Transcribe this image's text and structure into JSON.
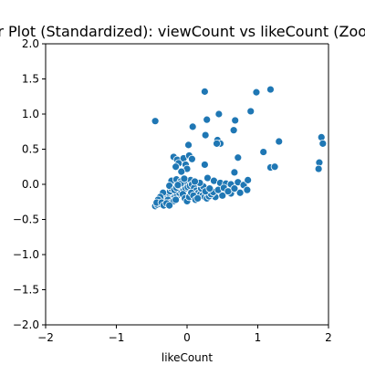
{
  "chart_data": {
    "type": "scatter",
    "title": "Scatter Plot (Standardized): viewCount vs likeCount (Zoomed In)",
    "xlabel": "likeCount",
    "ylabel": "",
    "xlim": [
      -2,
      2
    ],
    "ylim": [
      -2,
      2
    ],
    "xticks": [
      "−2",
      "−1",
      "0",
      "1",
      "2"
    ],
    "yticks": [
      "−2.0",
      "−1.5",
      "−1.0",
      "−0.5",
      "0.0",
      "0.5",
      "1.0",
      "1.5",
      "2.0"
    ],
    "grid": false,
    "marker_color": "#1f77b4",
    "points": [
      [
        -0.45,
        0.9
      ],
      [
        0.25,
        1.32
      ],
      [
        0.98,
        1.31
      ],
      [
        1.18,
        1.35
      ],
      [
        0.08,
        0.82
      ],
      [
        0.28,
        0.92
      ],
      [
        0.45,
        1.0
      ],
      [
        0.68,
        0.91
      ],
      [
        0.9,
        1.04
      ],
      [
        0.02,
        0.56
      ],
      [
        0.43,
        0.63
      ],
      [
        0.47,
        0.58
      ],
      [
        0.66,
        0.77
      ],
      [
        1.08,
        0.46
      ],
      [
        1.3,
        0.61
      ],
      [
        0.26,
        0.7
      ],
      [
        0.42,
        0.58
      ],
      [
        0.72,
        0.38
      ],
      [
        -0.19,
        0.39
      ],
      [
        -0.14,
        0.35
      ],
      [
        -0.05,
        0.37
      ],
      [
        0.03,
        0.41
      ],
      [
        0.07,
        0.36
      ],
      [
        -0.12,
        0.3
      ],
      [
        -0.02,
        0.28
      ],
      [
        0.0,
        0.22
      ],
      [
        -0.08,
        0.18
      ],
      [
        -0.16,
        0.25
      ],
      [
        0.25,
        0.28
      ],
      [
        0.67,
        0.17
      ],
      [
        1.18,
        0.24
      ],
      [
        1.24,
        0.25
      ],
      [
        1.9,
        0.67
      ],
      [
        1.92,
        0.58
      ],
      [
        1.87,
        0.31
      ],
      [
        1.86,
        0.22
      ],
      [
        -0.22,
        0.05
      ],
      [
        -0.15,
        0.07
      ],
      [
        -0.09,
        0.04
      ],
      [
        -0.02,
        0.02
      ],
      [
        0.05,
        0.06
      ],
      [
        0.29,
        0.09
      ],
      [
        0.38,
        0.05
      ],
      [
        0.47,
        0.02
      ],
      [
        0.55,
        0.01
      ],
      [
        0.62,
        0.0
      ],
      [
        0.72,
        0.03
      ],
      [
        0.8,
        -0.01
      ],
      [
        0.86,
        0.06
      ],
      [
        0.85,
        -0.08
      ],
      [
        0.75,
        -0.12
      ],
      [
        0.62,
        -0.13
      ],
      [
        0.5,
        -0.16
      ],
      [
        0.4,
        -0.18
      ],
      [
        -0.45,
        -0.31
      ],
      [
        -0.42,
        -0.29
      ],
      [
        -0.38,
        -0.28
      ],
      [
        -0.35,
        -0.25
      ],
      [
        -0.32,
        -0.22
      ],
      [
        -0.3,
        -0.18
      ],
      [
        -0.28,
        -0.15
      ],
      [
        -0.26,
        -0.12
      ],
      [
        -0.24,
        -0.1
      ],
      [
        -0.22,
        -0.06
      ],
      [
        -0.25,
        -0.02
      ],
      [
        -0.34,
        -0.12
      ],
      [
        -0.38,
        -0.18
      ],
      [
        -0.41,
        -0.22
      ],
      [
        -0.43,
        -0.26
      ],
      [
        -0.2,
        -0.2
      ],
      [
        -0.17,
        -0.18
      ],
      [
        -0.14,
        -0.16
      ],
      [
        -0.11,
        -0.12
      ],
      [
        -0.08,
        -0.1
      ],
      [
        -0.05,
        -0.08
      ],
      [
        -0.02,
        -0.06
      ],
      [
        0.01,
        -0.04
      ],
      [
        0.04,
        -0.02
      ],
      [
        0.07,
        0.0
      ],
      [
        0.1,
        -0.05
      ],
      [
        0.13,
        -0.09
      ],
      [
        0.16,
        -0.12
      ],
      [
        0.19,
        -0.14
      ],
      [
        0.22,
        -0.16
      ],
      [
        0.25,
        -0.18
      ],
      [
        0.28,
        -0.2
      ],
      [
        0.31,
        -0.17
      ],
      [
        0.34,
        -0.14
      ],
      [
        0.37,
        -0.11
      ],
      [
        -0.18,
        -0.08
      ],
      [
        -0.15,
        -0.05
      ],
      [
        -0.12,
        -0.02
      ],
      [
        -0.09,
        0.01
      ],
      [
        -0.06,
        -0.14
      ],
      [
        -0.03,
        -0.2
      ],
      [
        0.0,
        -0.24
      ],
      [
        0.03,
        -0.18
      ],
      [
        0.06,
        -0.12
      ],
      [
        0.09,
        -0.16
      ],
      [
        0.12,
        -0.22
      ],
      [
        0.15,
        -0.2
      ],
      [
        -0.27,
        -0.22
      ],
      [
        -0.23,
        -0.26
      ],
      [
        -0.19,
        -0.24
      ],
      [
        -0.16,
        -0.22
      ],
      [
        -0.36,
        -0.26
      ],
      [
        -0.33,
        -0.3
      ],
      [
        -0.29,
        -0.27
      ],
      [
        -0.25,
        -0.3
      ],
      [
        0.2,
        -0.06
      ],
      [
        0.23,
        -0.03
      ],
      [
        0.26,
        -0.1
      ],
      [
        0.32,
        -0.06
      ],
      [
        0.44,
        -0.08
      ],
      [
        0.52,
        -0.05
      ],
      [
        0.58,
        -0.1
      ],
      [
        0.67,
        -0.06
      ],
      [
        0.18,
        0.02
      ],
      [
        0.11,
        0.04
      ],
      [
        -0.04,
        0.08
      ],
      [
        -0.13,
        -0.01
      ]
    ]
  }
}
